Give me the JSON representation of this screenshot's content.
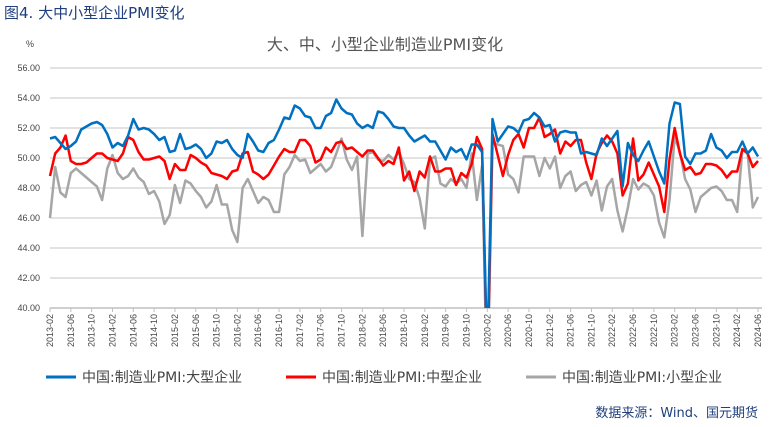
{
  "figure_title": "图4. 大中小型企业PMI变化",
  "source": "数据来源：Wind、国元期货",
  "chart_data": {
    "type": "line",
    "title": "大、中、小型企业制造业PMI变化",
    "ylabel": "%",
    "xlabel": "",
    "x_range": [
      "2013-02",
      "2024-06"
    ],
    "frequency": "monthly",
    "ylim": [
      40,
      56
    ],
    "y_ticks": [
      "40.00",
      "42.00",
      "44.00",
      "46.00",
      "48.00",
      "50.00",
      "52.00",
      "54.00",
      "56.00"
    ],
    "x_ticks": [
      "2013-02",
      "2013-06",
      "2013-10",
      "2014-02",
      "2014-06",
      "2014-10",
      "2015-02",
      "2015-06",
      "2015-10",
      "2016-02",
      "2016-06",
      "2016-10",
      "2017-02",
      "2017-06",
      "2017-10",
      "2018-02",
      "2018-06",
      "2018-10",
      "2019-02",
      "2019-06",
      "2019-10",
      "2020-02",
      "2020-06",
      "2020-10",
      "2021-02",
      "2021-06",
      "2021-10",
      "2022-02",
      "2022-06",
      "2022-10",
      "2023-02",
      "2023-06",
      "2023-10",
      "2024-02",
      "2024-06"
    ],
    "grid": true,
    "legend_position": "bottom",
    "series": [
      {
        "name": "中国:制造业PMI:大型企业",
        "color": "#0070c0",
        "values": [
          51.3,
          51.4,
          51.0,
          50.6,
          50.8,
          51.1,
          51.9,
          52.1,
          52.3,
          52.4,
          52.2,
          51.6,
          50.7,
          51.0,
          50.8,
          51.5,
          52.6,
          51.9,
          52.0,
          51.9,
          51.6,
          51.2,
          51.4,
          50.4,
          50.5,
          51.6,
          50.6,
          50.7,
          50.9,
          50.6,
          50.0,
          50.3,
          51.1,
          51.0,
          51.2,
          50.6,
          50.2,
          50.0,
          51.6,
          51.1,
          50.5,
          50.4,
          51.0,
          51.2,
          51.9,
          52.7,
          52.6,
          53.5,
          53.3,
          52.8,
          52.7,
          52.0,
          52.0,
          52.8,
          53.0,
          53.9,
          53.3,
          53.0,
          52.9,
          52.3,
          52.0,
          52.2,
          52.0,
          53.1,
          53.0,
          52.6,
          52.1,
          52.0,
          52.0,
          51.5,
          51.1,
          51.3,
          51.5,
          51.1,
          51.1,
          50.5,
          49.9,
          50.7,
          50.4,
          50.6,
          49.9,
          50.9,
          50.9,
          50.4,
          36.6,
          52.6,
          51.1,
          51.6,
          52.1,
          52.0,
          51.7,
          52.5,
          52.6,
          53.0,
          52.7,
          52.1,
          52.2,
          51.1,
          51.7,
          51.8,
          51.7,
          51.7,
          50.3,
          50.4,
          50.3,
          50.2,
          51.3,
          50.8,
          51.3,
          51.8,
          48.1,
          51.0,
          50.2,
          49.8,
          50.5,
          51.1,
          50.1,
          49.1,
          48.3,
          52.3,
          53.7,
          53.6,
          50.1,
          49.6,
          50.3,
          50.3,
          50.5,
          51.6,
          50.7,
          50.5,
          50.0,
          50.4,
          50.4,
          51.1,
          50.3,
          50.7,
          50.1
        ]
      },
      {
        "name": "中国:制造业PMI:中型企业",
        "color": "#ff0000",
        "values": [
          48.8,
          50.3,
          50.7,
          51.5,
          49.8,
          49.6,
          49.6,
          49.7,
          50.0,
          50.3,
          50.3,
          50.0,
          49.9,
          49.8,
          50.3,
          51.4,
          51.2,
          50.4,
          49.9,
          49.9,
          50.0,
          50.1,
          49.8,
          48.6,
          49.6,
          49.2,
          49.2,
          50.2,
          50.0,
          49.7,
          49.5,
          49.0,
          48.9,
          48.8,
          48.6,
          49.1,
          49.2,
          50.3,
          50.4,
          49.1,
          48.9,
          48.6,
          48.9,
          49.5,
          50.1,
          50.6,
          50.4,
          50.4,
          51.2,
          51.2,
          50.8,
          49.7,
          49.9,
          50.7,
          50.4,
          51.0,
          51.1,
          50.6,
          50.7,
          50.4,
          50.1,
          50.5,
          50.5,
          50.0,
          49.5,
          49.8,
          49.6,
          50.7,
          48.5,
          49.1,
          47.8,
          49.1,
          48.7,
          50.1,
          49.1,
          49.1,
          49.3,
          49.3,
          48.2,
          49.0,
          48.7,
          49.6,
          51.4,
          50.6,
          35.5,
          51.6,
          50.2,
          48.8,
          50.2,
          51.2,
          51.6,
          50.7,
          52.0,
          52.0,
          52.7,
          51.4,
          51.6,
          51.9,
          50.3,
          51.1,
          50.8,
          51.2,
          51.2,
          49.7,
          48.6,
          50.3,
          51.0,
          51.5,
          51.1,
          50.3,
          47.5,
          48.3,
          51.3,
          48.5,
          48.9,
          49.7,
          48.9,
          48.1,
          46.4,
          49.9,
          52.0,
          50.3,
          49.2,
          49.4,
          48.9,
          49.0,
          49.6,
          49.6,
          49.5,
          49.2,
          48.7,
          49.1,
          49.1,
          50.6,
          50.3,
          49.4,
          49.8
        ]
      },
      {
        "name": "中国:制造业PMI:小型企业",
        "color": "#a6a6a6",
        "values": [
          46.0,
          49.4,
          47.7,
          47.4,
          49.0,
          49.3,
          49.0,
          48.7,
          48.4,
          48.1,
          47.2,
          49.3,
          50.2,
          49.0,
          48.6,
          48.8,
          49.3,
          48.7,
          48.4,
          47.6,
          47.8,
          47.1,
          45.6,
          46.2,
          48.2,
          47.0,
          48.5,
          48.3,
          47.8,
          47.4,
          46.7,
          47.1,
          48.2,
          46.9,
          46.9,
          45.2,
          44.4,
          48.0,
          48.6,
          47.8,
          47.0,
          47.4,
          47.2,
          46.4,
          46.4,
          48.9,
          49.4,
          50.2,
          49.8,
          49.9,
          49.0,
          49.3,
          49.6,
          49.1,
          49.4,
          50.3,
          51.3,
          49.9,
          49.2,
          50.1,
          44.8,
          50.3,
          50.4,
          49.9,
          49.8,
          50.2,
          49.9,
          50.4,
          49.6,
          48.6,
          48.4,
          47.3,
          45.3,
          49.9,
          50.1,
          48.3,
          48.1,
          48.6,
          48.3,
          48.6,
          48.0,
          50.3,
          47.2,
          49.5,
          34.1,
          51.0,
          50.9,
          50.8,
          48.9,
          48.6,
          47.7,
          50.1,
          50.1,
          50.1,
          48.8,
          50.0,
          49.3,
          50.1,
          48.0,
          48.8,
          49.1,
          47.8,
          48.2,
          48.4,
          47.5,
          48.5,
          46.5,
          48.1,
          48.6,
          46.5,
          45.1,
          46.7,
          48.6,
          47.9,
          48.3,
          48.1,
          47.5,
          45.7,
          44.7,
          47.2,
          51.4,
          50.4,
          48.6,
          47.9,
          46.4,
          47.4,
          47.7,
          48.0,
          48.1,
          47.8,
          47.2,
          47.2,
          46.4,
          50.6,
          50.3,
          46.7,
          47.4
        ]
      }
    ]
  }
}
